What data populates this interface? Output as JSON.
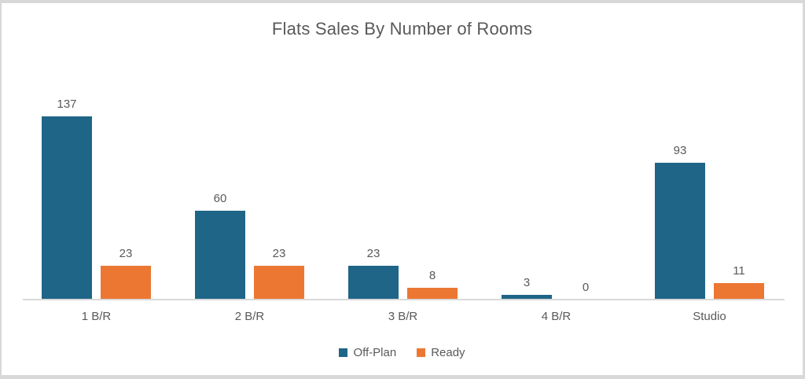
{
  "chart_data": {
    "type": "bar",
    "title": "Flats Sales By Number of Rooms",
    "categories": [
      "1 B/R",
      "2 B/R",
      "3 B/R",
      "4 B/R",
      "Studio"
    ],
    "series": [
      {
        "name": "Off-Plan",
        "color": "#1F6587",
        "values": [
          137,
          60,
          23,
          3,
          93
        ]
      },
      {
        "name": "Ready",
        "color": "#EC7733",
        "values": [
          23,
          23,
          8,
          0,
          11
        ]
      }
    ],
    "ylim": [
      0,
      137
    ],
    "xlabel": "",
    "ylabel": "",
    "grid": false,
    "data_labels": true,
    "legend_position": "bottom"
  },
  "colors": {
    "title_text": "#595959",
    "label_text": "#595959",
    "axis_line": "#D9D9D9",
    "frame_border": "#D8D8D8",
    "background": "#FFFFFF"
  }
}
